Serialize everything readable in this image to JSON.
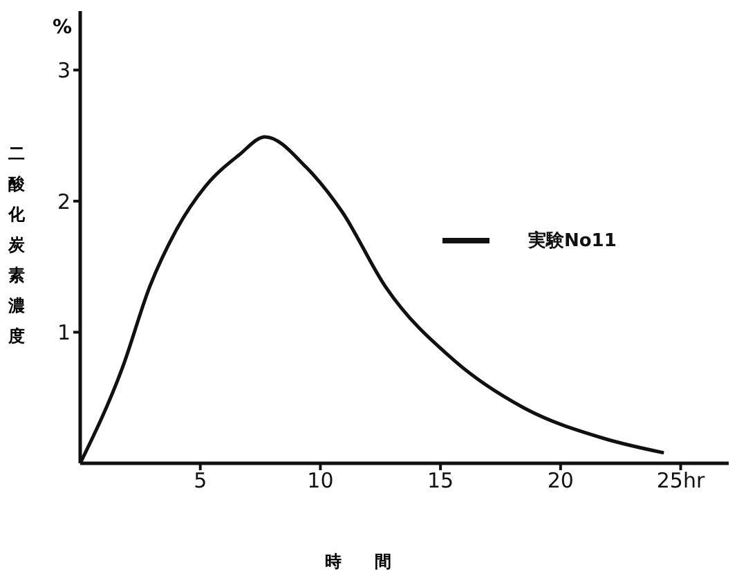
{
  "chart_data": {
    "type": "line",
    "xlabel": "時間",
    "ylabel": "二酸化炭素濃度",
    "annotations": [
      "%"
    ],
    "x": [
      0,
      1.76,
      2.9,
      4.0,
      5.2,
      6.6,
      7.7,
      9.4,
      10.9,
      12.7,
      15.6,
      18.4,
      21.8,
      24.3
    ],
    "series": [
      {
        "name": "実験No11",
        "color": "#111111",
        "values": [
          0,
          0.73,
          1.35,
          1.78,
          2.11,
          2.35,
          2.49,
          2.26,
          1.92,
          1.35,
          0.78,
          0.43,
          0.19,
          0.08
        ]
      }
    ],
    "xlim": [
      0,
      27
    ],
    "ylim": [
      0,
      3.45
    ],
    "xticks": [
      5,
      10,
      15,
      20,
      {
        "value": 25,
        "label": "25hr"
      }
    ],
    "yticks": [
      1,
      2,
      3
    ],
    "legend": "right",
    "marker": "none",
    "line_style": "solid",
    "grid": false
  }
}
